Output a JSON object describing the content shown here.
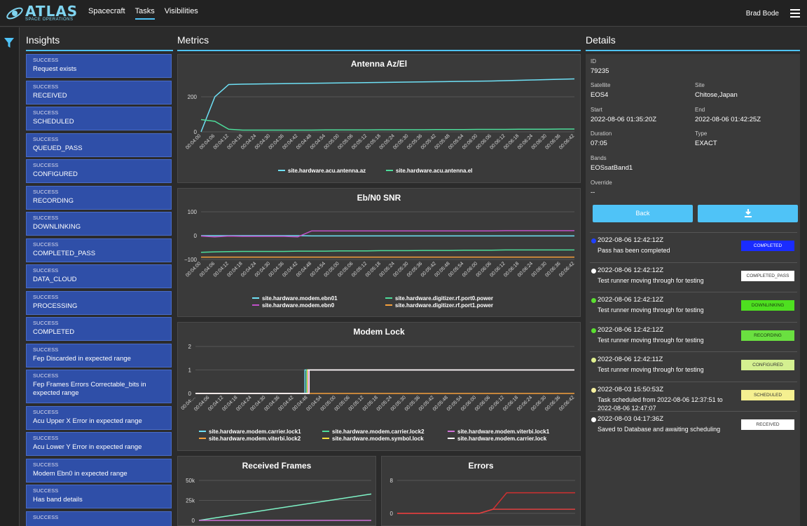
{
  "header": {
    "logo_main": "ATLAS",
    "logo_sub": "SPACE OPERATIONS",
    "nav": [
      "Spacecraft",
      "Tasks",
      "Visibilities"
    ],
    "active_nav": "Tasks",
    "user": "Brad Bode"
  },
  "sections": {
    "insights": "Insights",
    "metrics": "Metrics",
    "details": "Details"
  },
  "insights": [
    {
      "status": "SUCCESS",
      "name": "Request exists"
    },
    {
      "status": "SUCCESS",
      "name": "RECEIVED"
    },
    {
      "status": "SUCCESS",
      "name": "SCHEDULED"
    },
    {
      "status": "SUCCESS",
      "name": "QUEUED_PASS"
    },
    {
      "status": "SUCCESS",
      "name": "CONFIGURED"
    },
    {
      "status": "SUCCESS",
      "name": "RECORDING"
    },
    {
      "status": "SUCCESS",
      "name": "DOWNLINKING"
    },
    {
      "status": "SUCCESS",
      "name": "COMPLETED_PASS"
    },
    {
      "status": "SUCCESS",
      "name": "DATA_CLOUD"
    },
    {
      "status": "SUCCESS",
      "name": "PROCESSING"
    },
    {
      "status": "SUCCESS",
      "name": "COMPLETED"
    },
    {
      "status": "SUCCESS",
      "name": "Fep Discarded in expected range"
    },
    {
      "status": "SUCCESS",
      "name": "Fep Frames Errors Correctable_bits in expected range"
    },
    {
      "status": "SUCCESS",
      "name": "Acu Upper X Error in expected range"
    },
    {
      "status": "SUCCESS",
      "name": "Acu Lower Y Error in expected range"
    },
    {
      "status": "SUCCESS",
      "name": "Modem Ebn0 in expected range"
    },
    {
      "status": "SUCCESS",
      "name": "Has band details"
    },
    {
      "status": "SUCCESS",
      "name": ""
    }
  ],
  "chart_data": [
    {
      "type": "line",
      "title": "Antenna Az/El",
      "x": [
        "00:04:00",
        "00:04:06",
        "00:04:12",
        "00:04:18",
        "00:04:24",
        "00:04:30",
        "00:04:36",
        "00:04:42",
        "00:04:48",
        "00:04:54",
        "00:05:00",
        "00:05:06",
        "00:05:12",
        "00:05:18",
        "00:05:24",
        "00:05:30",
        "00:05:36",
        "00:05:42",
        "00:05:48",
        "00:05:54",
        "00:06:00",
        "00:06:06",
        "00:06:12",
        "00:06:18",
        "00:06:24",
        "00:06:30",
        "00:06:36",
        "00:06:42"
      ],
      "yticks": [
        "200",
        "0"
      ],
      "series": [
        {
          "name": "site.hardware.acu.antenna.az",
          "color": "#6ee0f5",
          "values": [
            0,
            200,
            270,
            272,
            273,
            274,
            275,
            276,
            277,
            278,
            279,
            280,
            281,
            282,
            283,
            284,
            285,
            286,
            287,
            288,
            289,
            290,
            292,
            294,
            296,
            298,
            300,
            302
          ]
        },
        {
          "name": "site.hardware.acu.antenna.el",
          "color": "#4ddc9a",
          "values": [
            70,
            60,
            15,
            10,
            10,
            10,
            10,
            10,
            10,
            11,
            11,
            11,
            11,
            12,
            12,
            12,
            12,
            13,
            13,
            13,
            14,
            14,
            14,
            15,
            15,
            15,
            16,
            16
          ]
        }
      ]
    },
    {
      "type": "line",
      "title": "Eb/N0 SNR",
      "x": [
        "00:04:00",
        "00:04:06",
        "00:04:12",
        "00:04:18",
        "00:04:24",
        "00:04:30",
        "00:04:36",
        "00:04:42",
        "00:04:48",
        "00:04:54",
        "00:05:00",
        "00:05:06",
        "00:05:12",
        "00:05:18",
        "00:05:24",
        "00:05:30",
        "00:05:36",
        "00:05:42",
        "00:05:48",
        "00:05:54",
        "00:06:00",
        "00:06:06",
        "00:06:12",
        "00:06:18",
        "00:06:24",
        "00:06:30",
        "00:06:36",
        "00:06:42"
      ],
      "yticks": [
        "100",
        "0",
        "−100"
      ],
      "series": [
        {
          "name": "site.hardware.modem.ebn01",
          "color": "#6ee0f5",
          "values": [
            0,
            0,
            0,
            0,
            0,
            0,
            0,
            0,
            -1,
            -1,
            -1,
            -1,
            -1,
            -1,
            -1,
            -1,
            -1,
            -1,
            -1,
            -1,
            -1,
            -1,
            -1,
            -1,
            -1,
            -1,
            -1,
            -1
          ]
        },
        {
          "name": "site.hardware.modem.ebn0",
          "color": "#c050c8",
          "values": [
            -2,
            -5,
            -2,
            -3,
            -3,
            -3,
            -3,
            -5,
            20,
            20,
            20,
            20,
            20,
            20,
            20,
            20,
            20,
            20,
            20,
            20,
            20,
            20,
            21,
            21,
            21,
            21,
            21,
            21
          ]
        },
        {
          "name": "site.hardware.digitizer.rf.port0.power",
          "color": "#4ddc9a",
          "values": [
            -70,
            -68,
            -67,
            -66,
            -66,
            -66,
            -66,
            -65,
            -65,
            -65,
            -64,
            -64,
            -64,
            -63,
            -63,
            -63,
            -62,
            -62,
            -62,
            -61,
            -61,
            -61,
            -60,
            -60,
            -60,
            -60,
            -60,
            -60
          ]
        },
        {
          "name": "site.hardware.digitizer.rf.port1.power",
          "color": "#f5a03c",
          "values": [
            -90,
            -90,
            -90,
            -90,
            -90,
            -90,
            -90,
            -90,
            -90,
            -90,
            -90,
            -90,
            -90,
            -90,
            -90,
            -90,
            -90,
            -90,
            -90,
            -90,
            -90,
            -90,
            -90,
            -90,
            -90,
            -90,
            -90,
            -90
          ]
        }
      ]
    },
    {
      "type": "line",
      "title": "Modem Lock",
      "x": [
        "00:04:...",
        "00:04:06",
        "00:04:12",
        "00:04:18",
        "00:04:24",
        "00:04:30",
        "00:04:36",
        "00:04:42",
        "00:04:48",
        "00:04:54",
        "00:05:00",
        "00:05:06",
        "00:05:12",
        "00:05:18",
        "00:05:24",
        "00:05:30",
        "00:05:36",
        "00:05:42",
        "00:05:48",
        "00:05:54",
        "00:06:00",
        "00:06:06",
        "00:06:12",
        "00:06:18",
        "00:06:24",
        "00:06:30",
        "00:06:36",
        "00:06:42"
      ],
      "yticks": [
        "2",
        "1",
        "0"
      ],
      "series": [
        {
          "name": "site.hardware.modem.carrier.lock1",
          "color": "#6ee0f5",
          "values": [
            0,
            0,
            0,
            0,
            0,
            0,
            0,
            0,
            1,
            1,
            1,
            1,
            1,
            1,
            1,
            1,
            1,
            1,
            1,
            1,
            1,
            1,
            1,
            1,
            1,
            1,
            1,
            1
          ]
        },
        {
          "name": "site.hardware.modem.viterbi.lock2",
          "color": "#f5a03c",
          "values": [
            0,
            0,
            0,
            0,
            0,
            0,
            0,
            0,
            0,
            0,
            0,
            0,
            0,
            0,
            0,
            0,
            0,
            0,
            0,
            0,
            0,
            0,
            0,
            0,
            0,
            0,
            0,
            0
          ]
        },
        {
          "name": "site.hardware.modem.carrier.lock2",
          "color": "#4ddc9a",
          "values": [
            0,
            0,
            0,
            0,
            0,
            0,
            0,
            0,
            1,
            1,
            1,
            1,
            1,
            1,
            1,
            1,
            1,
            1,
            1,
            1,
            1,
            1,
            1,
            1,
            1,
            1,
            1,
            1
          ]
        },
        {
          "name": "site.hardware.modem.symbol.lock",
          "color": "#f5e03c",
          "values": [
            0,
            0,
            0,
            0,
            0,
            0,
            0,
            0,
            1,
            1,
            1,
            1,
            1,
            1,
            1,
            1,
            1,
            1,
            1,
            1,
            1,
            1,
            1,
            1,
            1,
            1,
            1,
            1
          ]
        },
        {
          "name": "site.hardware.modem.viterbi.lock1",
          "color": "#d070d8",
          "values": [
            0,
            0,
            0,
            0,
            0,
            0,
            0,
            0,
            1,
            1,
            1,
            1,
            1,
            1,
            1,
            1,
            1,
            1,
            1,
            1,
            1,
            1,
            1,
            1,
            1,
            1,
            1,
            1
          ]
        },
        {
          "name": "site.hardware.modem.carrier.lock",
          "color": "#ffffff",
          "values": [
            0,
            0,
            0,
            0,
            0,
            0,
            0,
            0,
            1,
            1,
            1,
            1,
            1,
            1,
            1,
            1,
            1,
            1,
            1,
            1,
            1,
            1,
            1,
            1,
            1,
            1,
            1,
            1
          ]
        }
      ]
    },
    {
      "type": "line",
      "title": "Received Frames",
      "yticks": [
        "50k",
        "25k",
        "0"
      ],
      "series": [
        {
          "color": "#7ff5c8",
          "values": [
            0,
            33000
          ]
        },
        {
          "color": "#d070d8",
          "values": [
            0,
            0
          ]
        }
      ]
    },
    {
      "type": "line",
      "title": "Errors",
      "yticks": [
        "8",
        "0"
      ],
      "series": [
        {
          "color": "#d03030",
          "values": [
            0,
            0,
            0,
            0,
            0,
            0,
            0,
            1,
            5,
            5,
            5,
            5,
            5,
            5
          ]
        },
        {
          "color": "#e04040",
          "values": [
            0,
            0,
            0,
            0,
            0,
            0,
            0,
            1,
            1,
            1,
            1,
            1,
            1,
            1
          ]
        }
      ]
    }
  ],
  "details": {
    "id_label": "ID",
    "id": "79235",
    "satellite_label": "Satellite",
    "satellite": "EOS4",
    "site_label": "Site",
    "site": "Chitose,Japan",
    "start_label": "Start",
    "start": "2022-08-06 01:35:20Z",
    "end_label": "End",
    "end": "2022-08-06 01:42:25Z",
    "duration_label": "Duration",
    "duration": "07:05",
    "type_label": "Type",
    "type": "EXACT",
    "bands_label": "Bands",
    "bands": "EOSsatBand1",
    "override_label": "Override",
    "override": "--",
    "back_label": "Back"
  },
  "events": [
    {
      "time": "2022-08-06 12:42:12Z",
      "msg": "Pass has been completed",
      "badge": "COMPLETED",
      "dot": "#2040ff",
      "badge_bg": "#1a2cff",
      "badge_fg": "#ffffff"
    },
    {
      "time": "2022-08-06 12:42:12Z",
      "msg": "Test runner moving through for testing",
      "badge": "COMPLETED_PASS",
      "dot": "#ffffff",
      "badge_bg": "#ffffff",
      "badge_fg": "#333333"
    },
    {
      "time": "2022-08-06 12:42:12Z",
      "msg": "Test runner moving through for testing",
      "badge": "DOWNLINKING",
      "dot": "#5be030",
      "badge_bg": "#4ee020",
      "badge_fg": "#1a3a10"
    },
    {
      "time": "2022-08-06 12:42:12Z",
      "msg": "Test runner moving through for testing",
      "badge": "RECORDING",
      "dot": "#5be030",
      "badge_bg": "#6ae040",
      "badge_fg": "#1a3a10"
    },
    {
      "time": "2022-08-06 12:42:11Z",
      "msg": "Test runner moving through for testing",
      "badge": "CONFIGURED",
      "dot": "#e0f090",
      "badge_bg": "#d4f090",
      "badge_fg": "#333333"
    },
    {
      "time": "2022-08-03 15:50:53Z",
      "msg": "Task scheduled from 2022-08-06 12:37:51 to 2022-08-06 12:47:07",
      "badge": "SCHEDULED",
      "dot": "#f5f0a0",
      "badge_bg": "#f5f090",
      "badge_fg": "#333333"
    },
    {
      "time": "2022-08-03 04:17:36Z",
      "msg": "Saved to Database and awaiting scheduling",
      "badge": "RECEIVED",
      "dot": "#ffffff",
      "badge_bg": "#ffffff",
      "badge_fg": "#333333"
    }
  ]
}
